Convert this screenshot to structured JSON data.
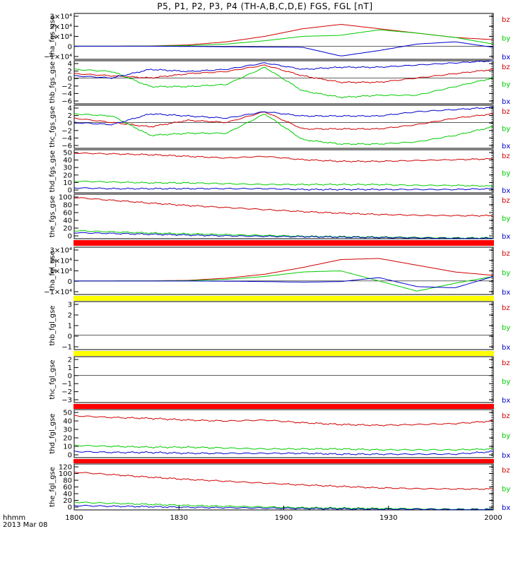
{
  "title": "P5, P1, P2, P3, P4 (TH-A,B,C,D,E) FGS, FGL [nT]",
  "footer": {
    "time_unit": "hhmm",
    "date": "2013 Mar 08"
  },
  "x_ticks": [
    "1800",
    "1830",
    "1900",
    "1930",
    "2000"
  ],
  "colors": {
    "bz": "#d00000",
    "by": "#00cc00",
    "bx": "#0000cc"
  },
  "chart_data": [
    {
      "type": "line",
      "ylabel": "tha_fgs_gse",
      "y_ticks": [
        "3×10⁴",
        "2×10⁴",
        "1×10⁴",
        "0",
        "−1×10⁴"
      ],
      "ylim": [
        -12000,
        30000
      ],
      "series": [
        {
          "name": "bz",
          "values": [
            0,
            0,
            200,
            1200,
            4000,
            9000,
            16000,
            20000,
            16000,
            12000,
            8000,
            6000
          ]
        },
        {
          "name": "by",
          "values": [
            0,
            0,
            100,
            600,
            2000,
            5000,
            9000,
            10000,
            15000,
            12000,
            8000,
            2000
          ]
        },
        {
          "name": "bx",
          "values": [
            0,
            0,
            0,
            -200,
            -500,
            -800,
            -1000,
            -9000,
            -4000,
            2000,
            4000,
            -1000
          ]
        }
      ]
    },
    {
      "type": "line",
      "ylabel": "thb_fgs_gse",
      "y_ticks": [
        "4",
        "2",
        "0",
        "−2",
        "−4",
        "−6"
      ],
      "ylim": [
        -6,
        4
      ],
      "series": [
        {
          "name": "bz",
          "values": [
            1,
            0.5,
            0,
            1,
            1.5,
            3,
            0.5,
            -1,
            -1,
            0,
            1,
            2
          ]
        },
        {
          "name": "by",
          "values": [
            2,
            1.5,
            -2,
            -2,
            -1.5,
            2.5,
            -3,
            -4.5,
            -4,
            -4,
            -2,
            0
          ]
        },
        {
          "name": "bx",
          "values": [
            0.5,
            0,
            2,
            1.5,
            2,
            3.5,
            2,
            2.5,
            2.5,
            3,
            3.5,
            4
          ]
        }
      ]
    },
    {
      "type": "line",
      "ylabel": "thc_fgs_gse",
      "y_ticks": [
        "4",
        "2",
        "0",
        "−2",
        "−4",
        "−6"
      ],
      "ylim": [
        -6,
        4
      ],
      "series": [
        {
          "name": "bz",
          "values": [
            1,
            0,
            -1,
            0.5,
            0,
            2.5,
            -1.5,
            -1.5,
            -1.5,
            -0.5,
            1,
            2
          ]
        },
        {
          "name": "by",
          "values": [
            2,
            1.5,
            -3,
            -2.5,
            -2.5,
            2,
            -4,
            -5,
            -5,
            -4.5,
            -3,
            -1
          ]
        },
        {
          "name": "bx",
          "values": [
            0,
            -0.5,
            2,
            1.5,
            1,
            2.5,
            1.5,
            1.5,
            1.5,
            2.5,
            3,
            3.5
          ]
        }
      ]
    },
    {
      "type": "line",
      "ylabel": "thd_fgs_gse",
      "y_ticks": [
        "50",
        "40",
        "30",
        "20",
        "10",
        "0"
      ],
      "ylim": [
        0,
        52
      ],
      "series": [
        {
          "name": "bz",
          "values": [
            48,
            47,
            46,
            44,
            42,
            44,
            40,
            38,
            38,
            39,
            40,
            41
          ]
        },
        {
          "name": "by",
          "values": [
            14,
            13,
            12,
            12,
            11,
            10,
            10,
            10,
            10,
            9,
            9,
            8
          ]
        },
        {
          "name": "bx",
          "values": [
            6,
            5,
            5,
            5,
            5,
            5,
            4,
            4,
            4,
            4,
            4,
            5
          ]
        }
      ]
    },
    {
      "type": "line",
      "ylabel": "the_fgs_gse",
      "y_ticks": [
        "100",
        "80",
        "60",
        "40",
        "20",
        "0"
      ],
      "ylim": [
        0,
        110
      ],
      "series": [
        {
          "name": "bz",
          "values": [
            102,
            95,
            88,
            82,
            77,
            72,
            67,
            63,
            60,
            58,
            57,
            57
          ]
        },
        {
          "name": "by",
          "values": [
            20,
            17,
            14,
            12,
            10,
            8,
            6,
            5,
            4,
            3,
            2,
            2
          ]
        },
        {
          "name": "bx",
          "values": [
            15,
            13,
            11,
            9,
            7,
            6,
            5,
            4,
            3,
            2,
            1,
            1
          ]
        }
      ]
    },
    {
      "type": "line",
      "ylabel": "tha_fgl_gse",
      "y_ticks": [
        "3×10⁴",
        "2×10⁴",
        "1×10⁴",
        "0",
        "−1×10⁴"
      ],
      "ylim": [
        -12000,
        30000
      ],
      "series": [
        {
          "name": "bz",
          "values": [
            0,
            0,
            100,
            600,
            2500,
            6000,
            12000,
            19000,
            20000,
            14000,
            8000,
            5000
          ]
        },
        {
          "name": "by",
          "values": [
            0,
            0,
            50,
            300,
            1500,
            4000,
            8000,
            9000,
            0,
            -9000,
            -2000,
            4000
          ]
        },
        {
          "name": "bx",
          "values": [
            0,
            0,
            0,
            0,
            -200,
            -500,
            -1000,
            -500,
            3000,
            -5000,
            -6000,
            4000
          ]
        }
      ]
    },
    {
      "type": "line",
      "ylabel": "thb_fgl_gse",
      "y_ticks": [
        "3",
        "2",
        "1",
        "0",
        "−1"
      ],
      "ylim": [
        -1.5,
        3.5
      ],
      "series": []
    },
    {
      "type": "line",
      "ylabel": "thc_fgl_gse",
      "y_ticks": [
        "2",
        "1",
        "0",
        "−1",
        "−2",
        "−3"
      ],
      "ylim": [
        -3.3,
        2.3
      ],
      "series": []
    },
    {
      "type": "line",
      "ylabel": "thd_fgl_gse",
      "y_ticks": [
        "50",
        "40",
        "30",
        "20",
        "10",
        "0"
      ],
      "ylim": [
        0,
        55
      ],
      "series": [
        {
          "name": "bz",
          "values": [
            48,
            46,
            45,
            43,
            42,
            43,
            40,
            38,
            37,
            38,
            39,
            42
          ]
        },
        {
          "name": "by",
          "values": [
            14,
            13,
            12,
            12,
            11,
            10,
            10,
            10,
            9,
            9,
            9,
            10
          ]
        },
        {
          "name": "bx",
          "values": [
            7,
            6,
            6,
            5,
            5,
            5,
            5,
            4,
            4,
            4,
            4,
            7
          ]
        }
      ]
    },
    {
      "type": "line",
      "ylabel": "the_fgl_gse",
      "y_ticks": [
        "120",
        "100",
        "80",
        "60",
        "40",
        "20",
        "0"
      ],
      "ylim": [
        0,
        125
      ],
      "series": [
        {
          "name": "bz",
          "values": [
            103,
            96,
            89,
            83,
            78,
            73,
            68,
            64,
            60,
            58,
            57,
            57
          ]
        },
        {
          "name": "by",
          "values": [
            21,
            18,
            15,
            12,
            10,
            8,
            6,
            5,
            4,
            3,
            2,
            2
          ]
        },
        {
          "name": "bx",
          "values": [
            12,
            10,
            9,
            7,
            6,
            5,
            4,
            3,
            2,
            2,
            1,
            1
          ]
        }
      ]
    }
  ],
  "separators": [
    "#ff0000",
    "#ffff00",
    "#ffff00",
    "#ff0000",
    "#ff0000"
  ],
  "legend": [
    "bz",
    "by",
    "bx"
  ]
}
